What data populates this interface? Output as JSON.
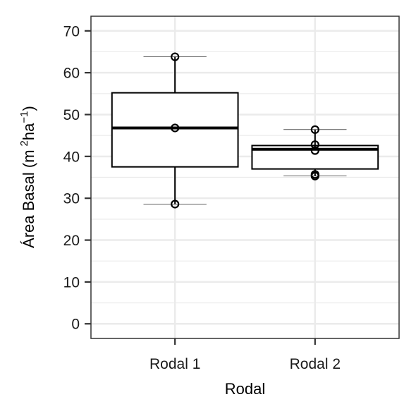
{
  "chart_data": {
    "type": "box",
    "categories": [
      "Rodal 1",
      "Rodal 2"
    ],
    "xlabel": "Rodal",
    "ylabel": {
      "prefix": "Área Basal (m",
      "exp1": "2",
      "middle": "ha",
      "exp2": "−1",
      "suffix": ")"
    },
    "ylim": [
      -3.5,
      73.5
    ],
    "yticks": [
      0,
      10,
      20,
      30,
      40,
      50,
      60,
      70
    ],
    "ytick_labels": [
      "0",
      "10",
      "20",
      "30",
      "40",
      "50",
      "60",
      "70"
    ],
    "grid": true,
    "boxes": [
      {
        "category": "Rodal 1",
        "q1": 37.5,
        "median": 46.8,
        "q3": 55.2,
        "whisker_low": 28.6,
        "whisker_high": 63.8
      },
      {
        "category": "Rodal 2",
        "q1": 37.0,
        "median": 41.7,
        "q3": 42.6,
        "whisker_low": 35.3,
        "whisker_high": 46.4
      }
    ],
    "points": [
      {
        "category": "Rodal 1",
        "values": [
          63.8,
          46.8,
          28.6
        ]
      },
      {
        "category": "Rodal 2",
        "values": [
          46.4,
          42.8,
          41.4,
          35.7,
          35.3
        ]
      }
    ]
  }
}
